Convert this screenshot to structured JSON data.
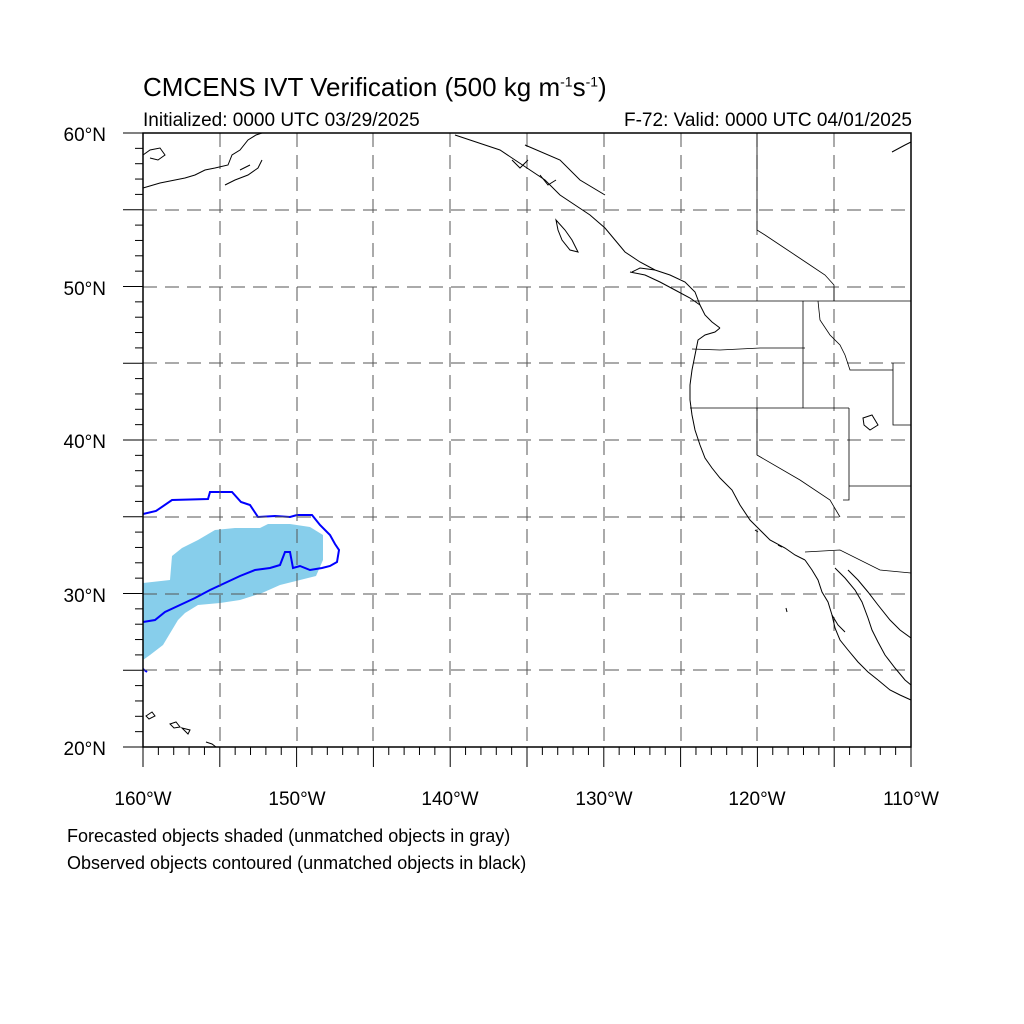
{
  "title": {
    "main": "CMCENS IVT Verification (500 kg m",
    "exp1": "-1",
    "mid": "s",
    "exp2": "-1",
    "end": ")"
  },
  "initialized": "Initialized: 0000 UTC 03/29/2025",
  "valid": "F-72: Valid: 0000 UTC 04/01/2025",
  "lat_labels": [
    "60°N",
    "50°N",
    "40°N",
    "30°N",
    "20°N"
  ],
  "lon_labels": [
    "160°W",
    "150°W",
    "140°W",
    "130°W",
    "120°W",
    "110°W"
  ],
  "notes": {
    "line1": "Forecasted objects shaded (unmatched objects in gray)",
    "line2": "Observed objects contoured (unmatched objects in black)"
  },
  "map_extent": {
    "lon_min": -160,
    "lon_max": -110,
    "lat_min": 20,
    "lat_max": 60
  },
  "colors": {
    "forecast_fill": "#87ceeb",
    "observed_contour": "#0000ff",
    "coast": "#000000"
  }
}
